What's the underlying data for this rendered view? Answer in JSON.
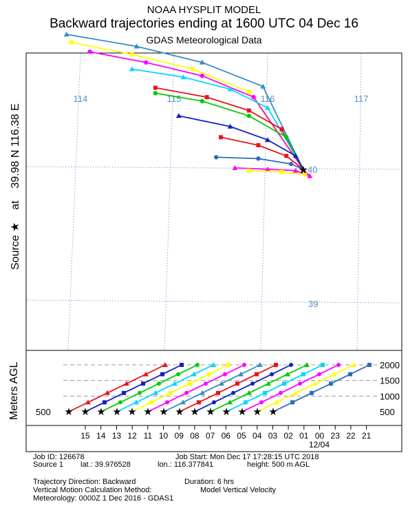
{
  "header": {
    "title": "NOAA HYSPLIT MODEL",
    "subtitle": "Backward trajectories ending at 1600 UTC 04 Dec 16",
    "met_data": "GDAS Meteorological Data"
  },
  "side_label": {
    "prefix": "Source",
    "star": "★",
    "at": "at",
    "coords": "39.98 N  116.38 E"
  },
  "agl_label": "Meters AGL",
  "info": {
    "job_id": "Job ID: 126678",
    "job_start": "Job Start: Mon Dec 17 17:28:15 UTC 2018",
    "source": "Source 1",
    "lat": "lat.: 39.976528",
    "lon": "lon.: 116.377841",
    "height": "height: 500 m AGL",
    "direction": "Trajectory Direction: Backward",
    "duration": "Duration: 6 hrs",
    "vertical_method": "Vertical Motion Calculation Method:",
    "vertical_value": "Model Vertical Velocity",
    "meteorology": "Meteorology: 0000Z  1 Dec 2016 - GDAS1"
  },
  "chart_data": [
    {
      "type": "map",
      "longitude_labels": [
        "114",
        "115",
        "116",
        "117"
      ],
      "latitude_labels": [
        "40",
        "39"
      ],
      "source": {
        "lat": 39.98,
        "lon": 116.38
      },
      "colors": [
        "#2b6db6",
        "#ff00ff",
        "#00d8ff",
        "#ffff00",
        "#00cc00",
        "#1020c0",
        "#e8141c",
        "#3a8cc4"
      ],
      "trajectories": [
        {
          "color": "#3a8cc4",
          "points": [
            [
              113.85,
              40.99
            ],
            [
              114.6,
              40.9
            ],
            [
              115.3,
              40.78
            ],
            [
              115.95,
              40.6
            ],
            [
              116.38,
              39.98
            ]
          ]
        },
        {
          "color": "#ffff00",
          "points": [
            [
              113.9,
              40.93
            ],
            [
              114.55,
              40.84
            ],
            [
              115.2,
              40.73
            ],
            [
              115.8,
              40.56
            ],
            [
              116.38,
              39.98
            ]
          ]
        },
        {
          "color": "#ff00ff",
          "points": [
            [
              114.1,
              40.86
            ],
            [
              114.7,
              40.78
            ],
            [
              115.3,
              40.68
            ],
            [
              115.85,
              40.52
            ],
            [
              116.38,
              39.98
            ]
          ]
        },
        {
          "color": "#00d8ff",
          "points": [
            [
              114.55,
              40.73
            ],
            [
              115.1,
              40.67
            ],
            [
              115.6,
              40.58
            ],
            [
              116.0,
              40.44
            ],
            [
              116.38,
              39.98
            ]
          ]
        },
        {
          "color": "#e8141c",
          "points": [
            [
              114.8,
              40.59
            ],
            [
              115.35,
              40.52
            ],
            [
              115.8,
              40.42
            ],
            [
              116.15,
              40.28
            ],
            [
              116.38,
              39.98
            ]
          ]
        },
        {
          "color": "#00cc00",
          "points": [
            [
              114.8,
              40.55
            ],
            [
              115.3,
              40.49
            ],
            [
              115.8,
              40.38
            ],
            [
              116.2,
              40.22
            ],
            [
              116.38,
              39.98
            ]
          ]
        },
        {
          "color": "#1020c0",
          "points": [
            [
              115.05,
              40.38
            ],
            [
              115.6,
              40.3
            ],
            [
              116.0,
              40.2
            ],
            [
              116.3,
              40.08
            ],
            [
              116.38,
              39.98
            ]
          ]
        },
        {
          "color": "#e8141c",
          "points": [
            [
              115.5,
              40.22
            ],
            [
              115.9,
              40.16
            ],
            [
              116.2,
              40.08
            ],
            [
              116.38,
              39.98
            ]
          ]
        },
        {
          "color": "#2b6db6",
          "points": [
            [
              115.45,
              40.07
            ],
            [
              115.9,
              40.06
            ],
            [
              116.25,
              40.02
            ],
            [
              116.38,
              39.98
            ]
          ]
        },
        {
          "color": "#ff00ff",
          "points": [
            [
              115.65,
              39.99
            ],
            [
              116.0,
              39.98
            ],
            [
              116.3,
              39.97
            ],
            [
              116.45,
              39.93
            ],
            [
              116.38,
              39.98
            ]
          ]
        },
        {
          "color": "#ffff00",
          "points": [
            [
              115.8,
              39.97
            ],
            [
              116.15,
              39.96
            ],
            [
              116.4,
              39.94
            ],
            [
              116.38,
              39.98
            ]
          ]
        }
      ]
    },
    {
      "type": "line",
      "ylabel": "Meters AGL",
      "y_ticks": [
        "2000",
        "1500",
        "1000",
        "500"
      ],
      "start_label": "500",
      "x_ticks": [
        "15",
        "14",
        "13",
        "12",
        "11",
        "10",
        "09",
        "08",
        "07",
        "06",
        "05",
        "04",
        "03",
        "02",
        "01",
        "00",
        "23",
        "22",
        "21"
      ],
      "date_label": "12/04",
      "series_colors": [
        "#e8141c",
        "#1020c0",
        "#00cc00",
        "#00d8ff",
        "#ffff00",
        "#ff00ff",
        "#3a8cc4",
        "#e8141c",
        "#1020c0",
        "#00cc00",
        "#00d8ff",
        "#ff00ff",
        "#ffff00",
        "#2b6db6"
      ],
      "heights": [
        500,
        800,
        1100,
        1400,
        1700,
        2000
      ]
    }
  ]
}
